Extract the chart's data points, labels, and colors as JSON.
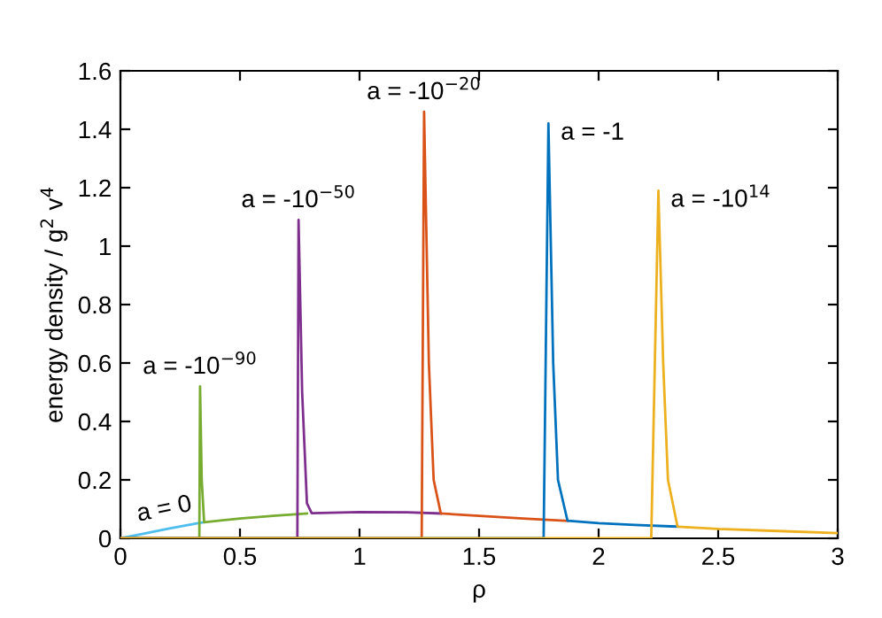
{
  "chart_data": {
    "type": "line",
    "xlabel": "ρ",
    "ylabel": "energy density / g$^{2}$ v$^{4}$",
    "xlim": [
      0,
      3
    ],
    "ylim": [
      0,
      1.6
    ],
    "xticks": [
      0,
      0.5,
      1,
      1.5,
      2,
      2.5,
      3
    ],
    "yticks": [
      0,
      0.2,
      0.4,
      0.6,
      0.8,
      1,
      1.2,
      1.4,
      1.6
    ],
    "grid": false,
    "legend": false,
    "marker": "none",
    "line_style": "solid",
    "series": [
      {
        "name": "a = 0",
        "color": "#4dbeee",
        "x": [
          0,
          0.1,
          0.2,
          0.33,
          0.35
        ],
        "values": [
          0,
          0.016,
          0.033,
          0.053,
          0.055
        ]
      },
      {
        "name": "a = -10$^{−90}$",
        "color": "#77ac30",
        "x": [
          0,
          0.33,
          0.333,
          0.34,
          0.35,
          0.5,
          0.65,
          0.78
        ],
        "values": [
          0,
          0,
          0.52,
          0.2,
          0.055,
          0.068,
          0.078,
          0.085
        ]
      },
      {
        "name": "a = -10$^{−50}$",
        "color": "#7e2f8e",
        "x": [
          0,
          0.74,
          0.745,
          0.76,
          0.78,
          0.8,
          1.0,
          1.2,
          1.34
        ],
        "values": [
          0,
          0,
          1.09,
          0.5,
          0.12,
          0.086,
          0.09,
          0.089,
          0.085
        ]
      },
      {
        "name": "a = -10$^{−20}$",
        "color": "#d95319",
        "x": [
          0,
          1.26,
          1.27,
          1.29,
          1.31,
          1.34,
          1.5,
          1.7,
          1.87
        ],
        "values": [
          0,
          0,
          1.46,
          0.6,
          0.2,
          0.085,
          0.077,
          0.067,
          0.06
        ]
      },
      {
        "name": "a = -1",
        "color": "#0072bd",
        "x": [
          0,
          1.77,
          1.79,
          1.81,
          1.83,
          1.87,
          2.0,
          2.15,
          2.33
        ],
        "values": [
          0,
          0,
          1.42,
          0.6,
          0.2,
          0.06,
          0.052,
          0.046,
          0.04
        ]
      },
      {
        "name": "a = -10$^{14}$",
        "color": "#edb120",
        "x": [
          0,
          2.22,
          2.25,
          2.27,
          2.29,
          2.33,
          2.5,
          2.75,
          3.0
        ],
        "values": [
          0,
          0,
          1.19,
          0.6,
          0.2,
          0.04,
          0.032,
          0.025,
          0.018
        ]
      }
    ]
  }
}
